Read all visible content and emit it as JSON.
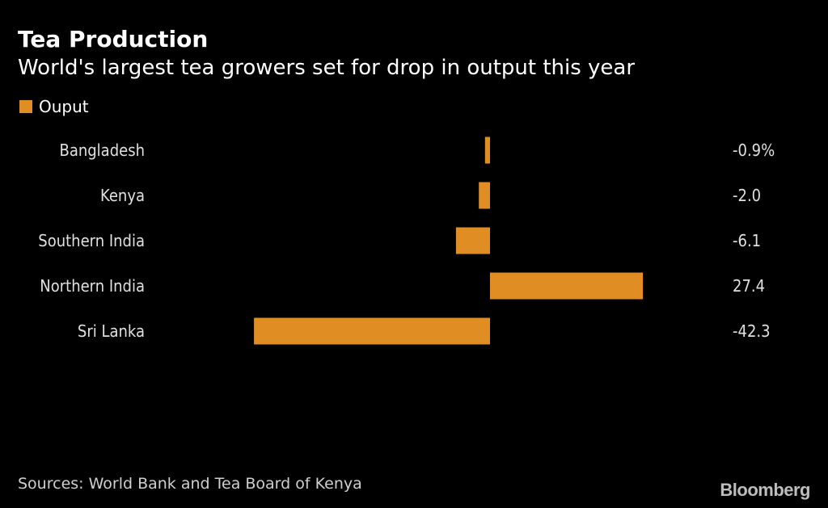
{
  "header": {
    "title": "Tea Production",
    "subtitle": "World's largest tea growers set for drop in output this year"
  },
  "legend": {
    "label": "Ouput"
  },
  "colors": {
    "bar": "#e08e24",
    "background": "#000000",
    "text": "#ffffff"
  },
  "footer": {
    "source": "Sources: World Bank and Tea Board of Kenya",
    "brand": "Bloomberg"
  },
  "chart_data": {
    "type": "bar",
    "orientation": "horizontal",
    "categories": [
      "Bangladesh",
      "Kenya",
      "Southern India",
      "Northern India",
      "Sri Lanka"
    ],
    "series": [
      {
        "name": "Ouput",
        "values": [
          -0.9,
          -2.0,
          -6.1,
          27.4,
          -42.3
        ]
      }
    ],
    "value_labels": [
      "-0.9%",
      "-2.0",
      "-6.1",
      "27.4",
      "-42.3"
    ],
    "legend_position": "top-left",
    "grid": false
  }
}
